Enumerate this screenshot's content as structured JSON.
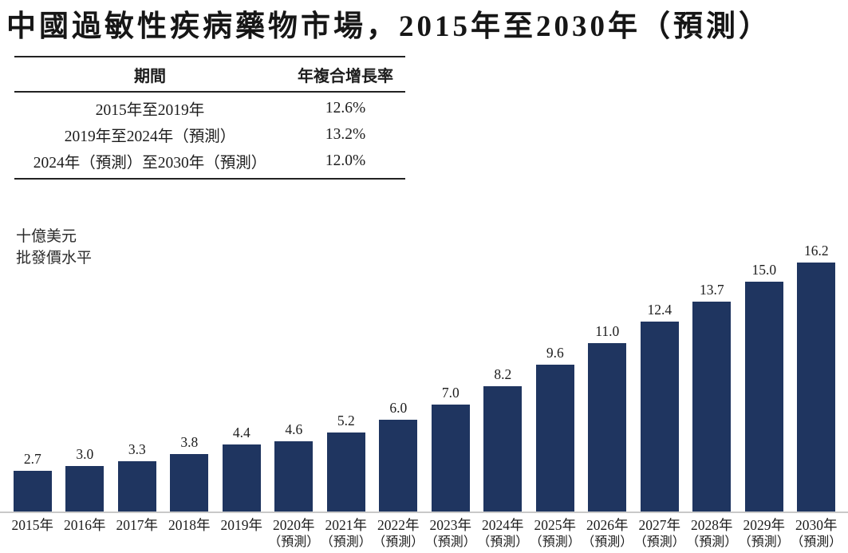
{
  "title": "中國過敏性疾病藥物市場，2015年至2030年（預測）",
  "cagr_table": {
    "headers": {
      "period": "期間",
      "cagr": "年複合增長率"
    },
    "rows": [
      {
        "period": "2015年至2019年",
        "cagr": "12.6%"
      },
      {
        "period": "2019年至2024年（預測）",
        "cagr": "13.2%"
      },
      {
        "period": "2024年（預測）至2030年（預測）",
        "cagr": "12.0%"
      }
    ]
  },
  "unit_note": {
    "line1": "十億美元",
    "line2": "批發價水平"
  },
  "chart_data": {
    "type": "bar",
    "title": "中國過敏性疾病藥物市場，2015年至2030年（預測）",
    "ylabel": "十億美元，批發價水平",
    "xlabel": "",
    "categories": [
      "2015年",
      "2016年",
      "2017年",
      "2018年",
      "2019年",
      "2020年",
      "2021年",
      "2022年",
      "2023年",
      "2024年",
      "2025年",
      "2026年",
      "2027年",
      "2028年",
      "2029年",
      "2030年"
    ],
    "sublabels": [
      "",
      "",
      "",
      "",
      "",
      "（預測）",
      "（預測）",
      "（預測）",
      "（預測）",
      "（預測）",
      "（預測）",
      "（預測）",
      "（預測）",
      "（預測）",
      "（預測）",
      "（預測）"
    ],
    "values": [
      2.7,
      3.0,
      3.3,
      3.8,
      4.4,
      4.6,
      5.2,
      6.0,
      7.0,
      8.2,
      9.6,
      11.0,
      12.4,
      13.7,
      15.0,
      16.2
    ],
    "ylim": [
      0,
      16.5
    ],
    "grid": false,
    "legend": "none",
    "value_labels": true,
    "bar_color": "#1f3560",
    "baseline_color": "#c9c9c9",
    "text_color": "#1c1c1c"
  }
}
